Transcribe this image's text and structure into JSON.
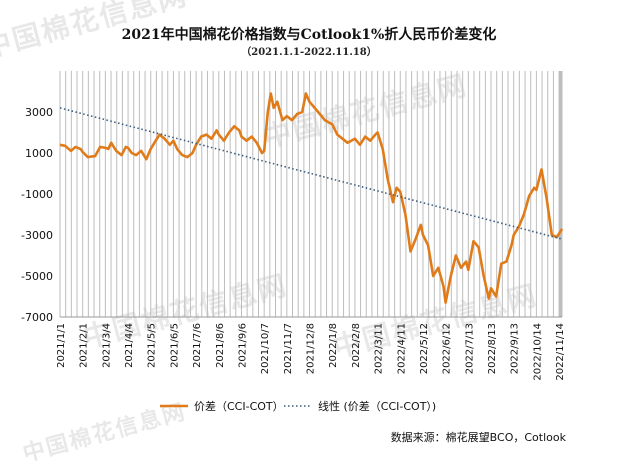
{
  "watermark": "中国棉花信息网",
  "chart_data": {
    "type": "line",
    "title": "2021年中国棉花价格指数与Cotlook1%折人民币价差变化",
    "subtitle": "（2021.1.1-2022.11.18）",
    "x_tick_labels": [
      "2021/1/1",
      "2021/2/1",
      "2021/3/4",
      "2021/4/4",
      "2021/5/5",
      "2021/6/5",
      "2021/7/6",
      "2021/8/6",
      "2021/9/6",
      "2021/10/7",
      "2021/11/7",
      "2021/12/8",
      "2022/1/8",
      "2022/2/8",
      "2022/3/11",
      "2022/4/11",
      "2022/5/12",
      "2022/6/12",
      "2022/7/13",
      "2022/8/13",
      "2022/9/13",
      "2022/10/14",
      "2022/11/14"
    ],
    "y_ticks": [
      3000,
      1000,
      -1000,
      -3000,
      -5000,
      -7000
    ],
    "ylim": [
      -7000,
      5000
    ],
    "xlim": [
      "2021/1/1",
      "2022/11/18"
    ],
    "grid": "vertical",
    "legend_position": "bottom",
    "series": [
      {
        "name": "价差（CCI-COT）",
        "color": "#E07B1A",
        "points": [
          [
            "2021/1/1",
            1400
          ],
          [
            "2021/1/8",
            1350
          ],
          [
            "2021/1/16",
            1100
          ],
          [
            "2021/1/22",
            1300
          ],
          [
            "2021/1/29",
            1200
          ],
          [
            "2021/2/1",
            1050
          ],
          [
            "2021/2/8",
            800
          ],
          [
            "2021/2/18",
            850
          ],
          [
            "2021/2/25",
            1300
          ],
          [
            "2021/3/4",
            1250
          ],
          [
            "2021/3/8",
            1200
          ],
          [
            "2021/3/12",
            1500
          ],
          [
            "2021/3/19",
            1100
          ],
          [
            "2021/3/26",
            900
          ],
          [
            "2021/4/1",
            1300
          ],
          [
            "2021/4/4",
            1250
          ],
          [
            "2021/4/9",
            1000
          ],
          [
            "2021/4/15",
            900
          ],
          [
            "2021/4/22",
            1100
          ],
          [
            "2021/4/29",
            700
          ],
          [
            "2021/5/5",
            1200
          ],
          [
            "2021/5/10",
            1500
          ],
          [
            "2021/5/17",
            1900
          ],
          [
            "2021/5/24",
            1700
          ],
          [
            "2021/5/31",
            1400
          ],
          [
            "2021/6/5",
            1600
          ],
          [
            "2021/6/10",
            1200
          ],
          [
            "2021/6/17",
            900
          ],
          [
            "2021/6/24",
            800
          ],
          [
            "2021/7/1",
            1000
          ],
          [
            "2021/7/6",
            1400
          ],
          [
            "2021/7/13",
            1800
          ],
          [
            "2021/7/20",
            1900
          ],
          [
            "2021/7/27",
            1700
          ],
          [
            "2021/8/3",
            2100
          ],
          [
            "2021/8/6",
            1900
          ],
          [
            "2021/8/13",
            1600
          ],
          [
            "2021/8/20",
            2000
          ],
          [
            "2021/8/27",
            2300
          ],
          [
            "2021/9/3",
            2100
          ],
          [
            "2021/9/6",
            1800
          ],
          [
            "2021/9/13",
            1600
          ],
          [
            "2021/9/20",
            1800
          ],
          [
            "2021/9/27",
            1500
          ],
          [
            "2021/10/4",
            1000
          ],
          [
            "2021/10/7",
            1100
          ],
          [
            "2021/10/12",
            3000
          ],
          [
            "2021/10/16",
            3900
          ],
          [
            "2021/10/20",
            3200
          ],
          [
            "2021/10/25",
            3500
          ],
          [
            "2021/11/1",
            2600
          ],
          [
            "2021/11/7",
            2800
          ],
          [
            "2021/11/14",
            2600
          ],
          [
            "2021/11/21",
            2900
          ],
          [
            "2021/11/28",
            3000
          ],
          [
            "2021/12/3",
            3900
          ],
          [
            "2021/12/8",
            3500
          ],
          [
            "2021/12/15",
            3200
          ],
          [
            "2021/12/22",
            2900
          ],
          [
            "2021/12/29",
            2600
          ],
          [
            "2022/1/8",
            2400
          ],
          [
            "2022/1/15",
            1900
          ],
          [
            "2022/1/22",
            1700
          ],
          [
            "2022/1/29",
            1500
          ],
          [
            "2022/2/8",
            1700
          ],
          [
            "2022/2/15",
            1400
          ],
          [
            "2022/2/22",
            1800
          ],
          [
            "2022/3/1",
            1600
          ],
          [
            "2022/3/8",
            1900
          ],
          [
            "2022/3/11",
            2000
          ],
          [
            "2022/3/18",
            1200
          ],
          [
            "2022/3/25",
            -300
          ],
          [
            "2022/4/1",
            -1400
          ],
          [
            "2022/4/6",
            -700
          ],
          [
            "2022/4/11",
            -900
          ],
          [
            "2022/4/18",
            -2000
          ],
          [
            "2022/4/25",
            -3800
          ],
          [
            "2022/5/2",
            -3200
          ],
          [
            "2022/5/9",
            -2500
          ],
          [
            "2022/5/12",
            -3000
          ],
          [
            "2022/5/19",
            -3500
          ],
          [
            "2022/5/26",
            -5000
          ],
          [
            "2022/6/2",
            -4600
          ],
          [
            "2022/6/9",
            -5500
          ],
          [
            "2022/6/12",
            -6300
          ],
          [
            "2022/6/19",
            -5000
          ],
          [
            "2022/6/26",
            -4000
          ],
          [
            "2022/7/3",
            -4600
          ],
          [
            "2022/7/10",
            -4300
          ],
          [
            "2022/7/13",
            -4700
          ],
          [
            "2022/7/20",
            -3300
          ],
          [
            "2022/7/27",
            -3600
          ],
          [
            "2022/8/3",
            -5000
          ],
          [
            "2022/8/10",
            -6100
          ],
          [
            "2022/8/13",
            -5600
          ],
          [
            "2022/8/20",
            -6000
          ],
          [
            "2022/8/27",
            -4400
          ],
          [
            "2022/9/3",
            -4300
          ],
          [
            "2022/9/10",
            -3500
          ],
          [
            "2022/9/13",
            -3000
          ],
          [
            "2022/9/20",
            -2600
          ],
          [
            "2022/9/27",
            -2000
          ],
          [
            "2022/10/4",
            -1100
          ],
          [
            "2022/10/11",
            -700
          ],
          [
            "2022/10/14",
            -800
          ],
          [
            "2022/10/21",
            200
          ],
          [
            "2022/10/28",
            -1200
          ],
          [
            "2022/11/4",
            -3000
          ],
          [
            "2022/11/11",
            -3100
          ],
          [
            "2022/11/18",
            -2700
          ]
        ]
      },
      {
        "name": "线性 (价差（CCI-COT）)",
        "color": "#3B5E7E",
        "style": "dotted",
        "points": [
          [
            "2021/1/1",
            3200
          ],
          [
            "2022/11/18",
            -3200
          ]
        ]
      }
    ],
    "legend": [
      {
        "label": "价差（CCI-COT）",
        "color": "#E07B1A",
        "style": "solid"
      },
      {
        "label": "线性 (价差（CCI-COT）)",
        "color": "#3B5E7E",
        "style": "dotted"
      }
    ]
  },
  "source": "数据来源：棉花展望BCO，Cotlook"
}
